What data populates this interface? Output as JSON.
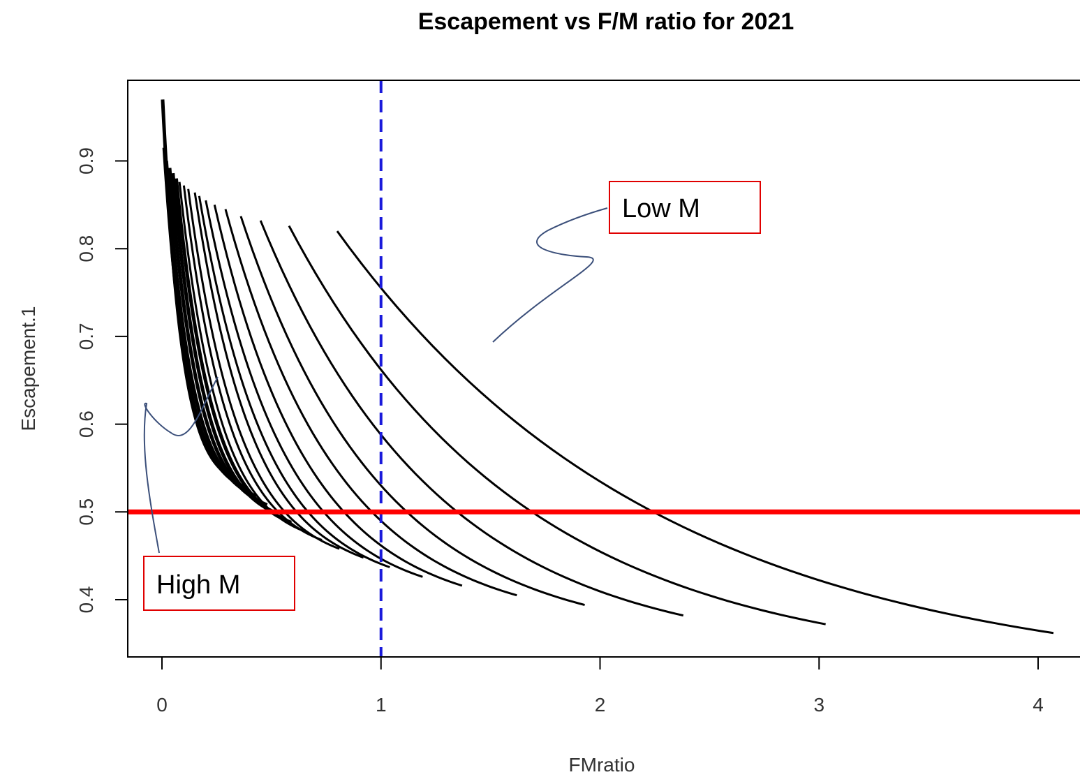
{
  "chart_data": {
    "type": "line",
    "title": "Escapement vs F/M ratio for  2021",
    "xlabel": "FMratio",
    "ylabel": "Escapement.1",
    "xlim": [
      -0.16,
      4.2
    ],
    "ylim": [
      0.345,
      0.99
    ],
    "xticks": [
      0,
      1,
      2,
      3,
      4
    ],
    "xtick_labels": [
      "0",
      "1",
      "2",
      "3",
      "4"
    ],
    "yticks": [
      0.4,
      0.5,
      0.6,
      0.7,
      0.8,
      0.9
    ],
    "ytick_labels": [
      "0.4",
      "0.5",
      "0.6",
      "0.7",
      "0.8",
      "0.9"
    ],
    "grid": false,
    "reference_lines": [
      {
        "orientation": "vertical",
        "value": 1,
        "color": "#1a1adb",
        "style": "dashed"
      },
      {
        "orientation": "horizontal",
        "value": 0.5,
        "color": "#ff0000",
        "style": "solid"
      }
    ],
    "annotations": [
      {
        "text": "Low M"
      },
      {
        "text": "High M"
      }
    ],
    "series": [
      {
        "x_start": 0.8,
        "x_end": 4.07,
        "y_start": 0.82,
        "y_end": 0.362
      },
      {
        "x_start": 0.58,
        "x_end": 3.03,
        "y_start": 0.826,
        "y_end": 0.372
      },
      {
        "x_start": 0.45,
        "x_end": 2.38,
        "y_start": 0.832,
        "y_end": 0.382
      },
      {
        "x_start": 0.36,
        "x_end": 1.93,
        "y_start": 0.837,
        "y_end": 0.394
      },
      {
        "x_start": 0.29,
        "x_end": 1.62,
        "y_start": 0.845,
        "y_end": 0.405
      },
      {
        "x_start": 0.24,
        "x_end": 1.37,
        "y_start": 0.85,
        "y_end": 0.416
      },
      {
        "x_start": 0.2,
        "x_end": 1.19,
        "y_start": 0.855,
        "y_end": 0.426
      },
      {
        "x_start": 0.17,
        "x_end": 1.04,
        "y_start": 0.86,
        "y_end": 0.437
      },
      {
        "x_start": 0.15,
        "x_end": 0.92,
        "y_start": 0.864,
        "y_end": 0.448
      },
      {
        "x_start": 0.12,
        "x_end": 0.81,
        "y_start": 0.868,
        "y_end": 0.458
      },
      {
        "x_start": 0.1,
        "x_end": 0.73,
        "y_start": 0.872,
        "y_end": 0.468
      },
      {
        "x_start": 0.08,
        "x_end": 0.65,
        "y_start": 0.876,
        "y_end": 0.478
      },
      {
        "x_start": 0.065,
        "x_end": 0.59,
        "y_start": 0.88,
        "y_end": 0.488
      },
      {
        "x_start": 0.05,
        "x_end": 0.53,
        "y_start": 0.886,
        "y_end": 0.498
      },
      {
        "x_start": 0.035,
        "x_end": 0.48,
        "y_start": 0.892,
        "y_end": 0.508
      },
      {
        "x_start": 0.02,
        "x_end": 0.43,
        "y_start": 0.9,
        "y_end": 0.518
      },
      {
        "x_start": 0.01,
        "x_end": 0.38,
        "y_start": 0.915,
        "y_end": 0.528
      },
      {
        "x_start": 0.003,
        "x_end": 0.33,
        "y_start": 0.97,
        "y_end": 0.538
      }
    ]
  }
}
